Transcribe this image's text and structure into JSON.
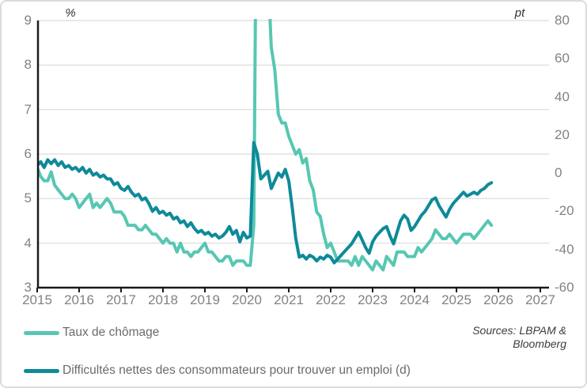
{
  "source_note": {
    "line1": "Sources: LBPAM &",
    "line2": "Bloomberg"
  },
  "chart_data": {
    "type": "line",
    "title": "",
    "grid": true,
    "legend_position": "bottom-left",
    "grid_color": "#d9d9d9",
    "axis_color": "#1a1a1a",
    "tick_text_color": "#828282",
    "left_axis": {
      "label": "%",
      "min": 3,
      "max": 9,
      "ticks": [
        9,
        8,
        7,
        6,
        5,
        4,
        3
      ]
    },
    "right_axis": {
      "label": "pt",
      "min": -60,
      "max": 80,
      "ticks": [
        80,
        60,
        40,
        20,
        0,
        -20,
        -40,
        -60
      ]
    },
    "x_axis": {
      "min": 2015,
      "max": 2027.2,
      "ticks": [
        2015,
        2016,
        2017,
        2018,
        2019,
        2020,
        2021,
        2022,
        2023,
        2024,
        2025,
        2026,
        2027
      ]
    },
    "series_start": "2015-01",
    "series_frequency": "monthly",
    "series": [
      {
        "name": "Taux de chômage",
        "axis": "left",
        "unit": "%",
        "color": "#56C7B2",
        "values": [
          5.7,
          5.5,
          5.4,
          5.4,
          5.6,
          5.3,
          5.2,
          5.1,
          5.0,
          5.0,
          5.1,
          5.0,
          4.8,
          4.9,
          5.0,
          5.1,
          4.8,
          4.9,
          4.8,
          4.9,
          5.0,
          4.9,
          4.7,
          4.7,
          4.7,
          4.6,
          4.4,
          4.4,
          4.4,
          4.3,
          4.3,
          4.4,
          4.3,
          4.2,
          4.2,
          4.1,
          4.0,
          4.1,
          4.0,
          4.0,
          3.8,
          4.0,
          3.8,
          3.8,
          3.7,
          3.8,
          3.8,
          3.9,
          4.0,
          3.8,
          3.8,
          3.7,
          3.6,
          3.6,
          3.7,
          3.7,
          3.5,
          3.6,
          3.6,
          3.6,
          3.5,
          3.5,
          4.4,
          14.7,
          13.2,
          11.0,
          10.2,
          8.4,
          7.9,
          6.9,
          6.7,
          6.7,
          6.4,
          6.2,
          6.0,
          6.1,
          5.8,
          5.9,
          5.4,
          5.2,
          4.7,
          4.6,
          4.2,
          3.9,
          4.0,
          3.8,
          3.6,
          3.6,
          3.6,
          3.6,
          3.5,
          3.7,
          3.5,
          3.7,
          3.6,
          3.5,
          3.4,
          3.6,
          3.5,
          3.4,
          3.7,
          3.6,
          3.5,
          3.8,
          3.8,
          3.8,
          3.7,
          3.7,
          3.7,
          3.9,
          3.8,
          3.9,
          4.0,
          4.1,
          4.3,
          4.2,
          4.1,
          4.1,
          4.2,
          4.1,
          4.0,
          4.1,
          4.2,
          4.2,
          4.2,
          4.1,
          4.2,
          4.3,
          4.4,
          4.5,
          4.4
        ]
      },
      {
        "name": "Difficultés nettes des consommateurs pour trouver un emploi (d)",
        "axis": "right",
        "unit": "pt",
        "color": "#0E8A99",
        "values": [
          4,
          6,
          3,
          7,
          5,
          7,
          4,
          6,
          3,
          4,
          2,
          3,
          1,
          3,
          0,
          2,
          -1,
          0,
          -2,
          -1,
          -3,
          -3,
          -6,
          -5,
          -8,
          -9,
          -7,
          -10,
          -12,
          -11,
          -14,
          -13,
          -16,
          -20,
          -18,
          -21,
          -20,
          -22,
          -21,
          -24,
          -23,
          -26,
          -25,
          -28,
          -26,
          -29,
          -31,
          -30,
          -32,
          -31,
          -33,
          -32,
          -34,
          -33,
          -31,
          -28,
          -32,
          -30,
          -36,
          -31,
          -34,
          -33,
          16,
          10,
          -3,
          -1,
          1,
          -8,
          -4,
          0,
          -2,
          2,
          -4,
          -18,
          -34,
          -44,
          -43,
          -45,
          -43,
          -44,
          -46,
          -44,
          -45,
          -43,
          -44,
          -47,
          -45,
          -43,
          -41,
          -39,
          -37,
          -34,
          -31,
          -35,
          -39,
          -42,
          -36,
          -33,
          -31,
          -29,
          -28,
          -33,
          -37,
          -31,
          -25,
          -22,
          -24,
          -30,
          -28,
          -25,
          -22,
          -20,
          -17,
          -14,
          -13,
          -17,
          -20,
          -23,
          -19,
          -16,
          -14,
          -12,
          -10,
          -12,
          -11,
          -10,
          -11,
          -9,
          -8,
          -6,
          -5
        ]
      }
    ]
  }
}
